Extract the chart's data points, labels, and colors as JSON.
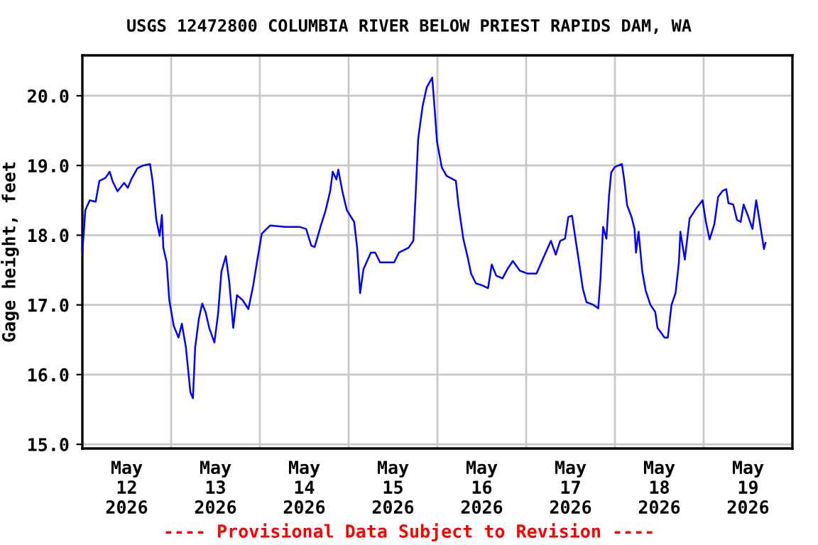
{
  "chart_data": {
    "type": "line",
    "title": "USGS 12472800 COLUMBIA RIVER BELOW PRIEST RAPIDS DAM, WA",
    "ylabel": "Gage height, feet",
    "annotations": [
      "---- Provisional Data Subject to Revision ----"
    ],
    "xlim": [
      "2026-05-12T00:00",
      "2026-05-20T00:00"
    ],
    "ylim": [
      14.94,
      20.58
    ],
    "yticks": [
      {
        "value": 15,
        "label": "15.0"
      },
      {
        "value": 16,
        "label": "16.0"
      },
      {
        "value": 17,
        "label": "17.0"
      },
      {
        "value": 18,
        "label": "18.0"
      },
      {
        "value": 19,
        "label": "19.0"
      },
      {
        "value": 20,
        "label": "20.0"
      }
    ],
    "xticks": [
      {
        "value": "2026-05-12T00:00",
        "label": null
      },
      {
        "value": "2026-05-12T12:00",
        "label": "May\n12\n2026"
      },
      {
        "value": "2026-05-13T00:00",
        "label": null
      },
      {
        "value": "2026-05-13T12:00",
        "label": "May\n13\n2026"
      },
      {
        "value": "2026-05-14T00:00",
        "label": null
      },
      {
        "value": "2026-05-14T12:00",
        "label": "May\n14\n2026"
      },
      {
        "value": "2026-05-15T00:00",
        "label": null
      },
      {
        "value": "2026-05-15T12:00",
        "label": "May\n15\n2026"
      },
      {
        "value": "2026-05-16T00:00",
        "label": null
      },
      {
        "value": "2026-05-16T12:00",
        "label": "May\n16\n2026"
      },
      {
        "value": "2026-05-17T00:00",
        "label": null
      },
      {
        "value": "2026-05-17T12:00",
        "label": "May\n17\n2026"
      },
      {
        "value": "2026-05-18T00:00",
        "label": null
      },
      {
        "value": "2026-05-18T12:00",
        "label": "May\n18\n2026"
      },
      {
        "value": "2026-05-19T00:00",
        "label": null
      },
      {
        "value": "2026-05-19T12:00",
        "label": "May\n19\n2026"
      },
      {
        "value": "2026-05-20T00:00",
        "label": null
      }
    ],
    "grid": true,
    "line_style": "solid",
    "series": [
      {
        "color": "#0000ff",
        "x": [
          "2026-05-12T00:00",
          "2026-05-12T00:48",
          "2026-05-12T02:00",
          "2026-05-12T03:36",
          "2026-05-12T04:36",
          "2026-05-12T06:12",
          "2026-05-12T07:24",
          "2026-05-12T08:12",
          "2026-05-12T09:30",
          "2026-05-12T11:18",
          "2026-05-12T12:18",
          "2026-05-12T13:18",
          "2026-05-12T14:54",
          "2026-05-12T16:24",
          "2026-05-12T18:18",
          "2026-05-12T19:00",
          "2026-05-12T20:00",
          "2026-05-12T20:54",
          "2026-05-12T21:30",
          "2026-05-12T21:54",
          "2026-05-12T22:48",
          "2026-05-12T23:30",
          "2026-05-13T00:42",
          "2026-05-13T02:00",
          "2026-05-13T02:54",
          "2026-05-13T04:00",
          "2026-05-13T05:12",
          "2026-05-13T05:54",
          "2026-05-13T06:30",
          "2026-05-13T07:30",
          "2026-05-13T08:24",
          "2026-05-13T09:18",
          "2026-05-13T10:18",
          "2026-05-13T11:42",
          "2026-05-13T12:42",
          "2026-05-13T13:36",
          "2026-05-13T14:48",
          "2026-05-13T15:42",
          "2026-05-13T16:48",
          "2026-05-13T17:48",
          "2026-05-13T19:18",
          "2026-05-13T20:54",
          "2026-05-13T22:12",
          "2026-05-13T23:12",
          "2026-05-14T00:30",
          "2026-05-14T02:48",
          "2026-05-14T06:54",
          "2026-05-14T10:42",
          "2026-05-14T12:30",
          "2026-05-14T13:54",
          "2026-05-14T14:48",
          "2026-05-14T15:48",
          "2026-05-14T16:30",
          "2026-05-14T17:48",
          "2026-05-14T19:00",
          "2026-05-14T19:42",
          "2026-05-14T20:42",
          "2026-05-14T21:12",
          "2026-05-14T22:18",
          "2026-05-14T23:30",
          "2026-05-15T01:30",
          "2026-05-15T02:18",
          "2026-05-15T03:06",
          "2026-05-15T04:00",
          "2026-05-15T06:00",
          "2026-05-15T07:12",
          "2026-05-15T08:30",
          "2026-05-15T10:24",
          "2026-05-15T12:18",
          "2026-05-15T13:36",
          "2026-05-15T16:12",
          "2026-05-15T17:30",
          "2026-05-15T18:06",
          "2026-05-15T18:48",
          "2026-05-15T20:00",
          "2026-05-15T21:06",
          "2026-05-15T22:36",
          "2026-05-15T23:18",
          "2026-05-15T23:54",
          "2026-05-16T01:12",
          "2026-05-16T02:30",
          "2026-05-16T05:00",
          "2026-05-16T05:42",
          "2026-05-16T07:00",
          "2026-05-16T08:12",
          "2026-05-16T09:06",
          "2026-05-16T10:24",
          "2026-05-16T12:06",
          "2026-05-16T13:42",
          "2026-05-16T14:42",
          "2026-05-16T15:54",
          "2026-05-16T17:36",
          "2026-05-16T18:54",
          "2026-05-16T20:24",
          "2026-05-16T22:18",
          "2026-05-17T00:18",
          "2026-05-17T02:48",
          "2026-05-17T04:42",
          "2026-05-17T06:42",
          "2026-05-17T08:00",
          "2026-05-17T09:12",
          "2026-05-17T10:30",
          "2026-05-17T11:24",
          "2026-05-17T12:24",
          "2026-05-17T13:30",
          "2026-05-17T14:18",
          "2026-05-17T15:18",
          "2026-05-17T16:18",
          "2026-05-17T18:12",
          "2026-05-17T19:30",
          "2026-05-17T20:06",
          "2026-05-17T20:48",
          "2026-05-17T21:42",
          "2026-05-17T22:24",
          "2026-05-17T23:00",
          "2026-05-18T00:00",
          "2026-05-18T01:54",
          "2026-05-18T02:30",
          "2026-05-18T03:18",
          "2026-05-18T04:30",
          "2026-05-18T05:18",
          "2026-05-18T05:42",
          "2026-05-18T06:24",
          "2026-05-18T07:24",
          "2026-05-18T08:18",
          "2026-05-18T09:36",
          "2026-05-18T10:54",
          "2026-05-18T11:30",
          "2026-05-18T12:30",
          "2026-05-18T13:24",
          "2026-05-18T14:18",
          "2026-05-18T15:18",
          "2026-05-18T16:24",
          "2026-05-18T17:18",
          "2026-05-18T17:42",
          "2026-05-18T18:54",
          "2026-05-18T20:12",
          "2026-05-18T21:48",
          "2026-05-18T23:42",
          "2026-05-19T00:36",
          "2026-05-19T01:36",
          "2026-05-19T02:54",
          "2026-05-19T03:54",
          "2026-05-19T05:12",
          "2026-05-19T06:06",
          "2026-05-19T06:42",
          "2026-05-19T08:00",
          "2026-05-19T09:00",
          "2026-05-19T10:00",
          "2026-05-19T10:48",
          "2026-05-19T11:54",
          "2026-05-19T13:12",
          "2026-05-19T14:12",
          "2026-05-19T15:06",
          "2026-05-19T16:18",
          "2026-05-19T16:42"
        ],
        "values": [
          17.75,
          18.36,
          18.5,
          18.48,
          18.78,
          18.82,
          18.91,
          18.77,
          18.63,
          18.75,
          18.68,
          18.81,
          18.96,
          19.0,
          19.02,
          18.77,
          18.22,
          17.99,
          18.29,
          17.82,
          17.61,
          17.07,
          16.7,
          16.53,
          16.73,
          16.39,
          15.75,
          15.66,
          16.39,
          16.8,
          17.02,
          16.9,
          16.67,
          16.46,
          16.87,
          17.48,
          17.7,
          17.34,
          16.67,
          17.14,
          17.07,
          16.94,
          17.28,
          17.61,
          18.02,
          18.14,
          18.12,
          18.12,
          18.09,
          17.85,
          17.83,
          18.01,
          18.14,
          18.36,
          18.63,
          18.91,
          18.8,
          18.94,
          18.63,
          18.36,
          18.19,
          17.82,
          17.17,
          17.51,
          17.75,
          17.75,
          17.61,
          17.61,
          17.61,
          17.75,
          17.82,
          17.92,
          18.56,
          19.38,
          19.85,
          20.12,
          20.26,
          19.78,
          19.34,
          18.97,
          18.85,
          18.78,
          18.43,
          17.95,
          17.68,
          17.45,
          17.31,
          17.28,
          17.24,
          17.58,
          17.42,
          17.38,
          17.51,
          17.63,
          17.49,
          17.45,
          17.45,
          17.68,
          17.92,
          17.72,
          17.92,
          17.95,
          18.26,
          18.28,
          17.89,
          17.61,
          17.24,
          17.04,
          17.0,
          16.95,
          17.38,
          18.12,
          17.95,
          18.56,
          18.9,
          18.98,
          19.02,
          18.8,
          18.43,
          18.26,
          18.09,
          17.75,
          18.05,
          17.48,
          17.21,
          17.0,
          16.9,
          16.67,
          16.6,
          16.53,
          16.53,
          17.0,
          17.17,
          17.61,
          18.05,
          17.65,
          18.24,
          18.37,
          18.5,
          18.19,
          17.94,
          18.16,
          18.55,
          18.64,
          18.66,
          18.46,
          18.44,
          18.22,
          18.19,
          18.44,
          18.29,
          18.09,
          18.5,
          18.21,
          17.8,
          17.89
        ]
      }
    ]
  }
}
